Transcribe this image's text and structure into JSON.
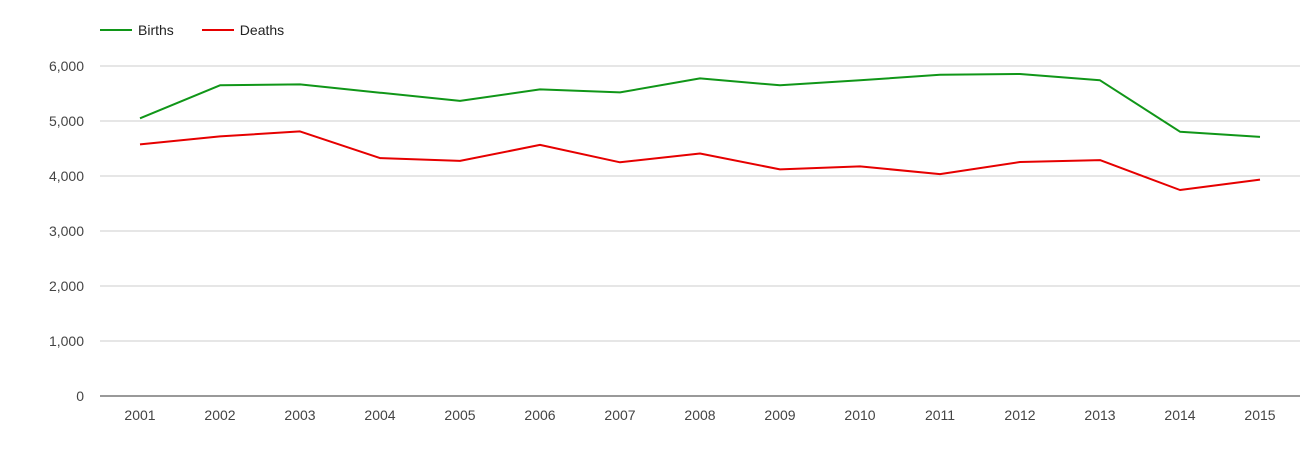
{
  "chart_data": {
    "type": "line",
    "categories": [
      "2001",
      "2002",
      "2003",
      "2004",
      "2005",
      "2006",
      "2007",
      "2008",
      "2009",
      "2010",
      "2011",
      "2012",
      "2013",
      "2014",
      "2015"
    ],
    "series": [
      {
        "name": "Births",
        "color": "#109618",
        "values": [
          5050,
          5650,
          5665,
          5515,
          5365,
          5575,
          5520,
          5775,
          5650,
          5740,
          5840,
          5855,
          5740,
          4805,
          4710
        ]
      },
      {
        "name": "Deaths",
        "color": "#e60000",
        "values": [
          4575,
          4720,
          4810,
          4325,
          4275,
          4565,
          4250,
          4410,
          4120,
          4175,
          4035,
          4255,
          4290,
          3745,
          3935
        ]
      }
    ],
    "yticks": [
      0,
      1000,
      2000,
      3000,
      4000,
      5000,
      6000
    ],
    "ytick_labels": [
      "0",
      "1,000",
      "2,000",
      "3,000",
      "4,000",
      "5,000",
      "6,000"
    ],
    "ylim": [
      0,
      6000
    ],
    "grid": true,
    "legend_position": "top-left",
    "title": "",
    "xlabel": "",
    "ylabel": ""
  }
}
